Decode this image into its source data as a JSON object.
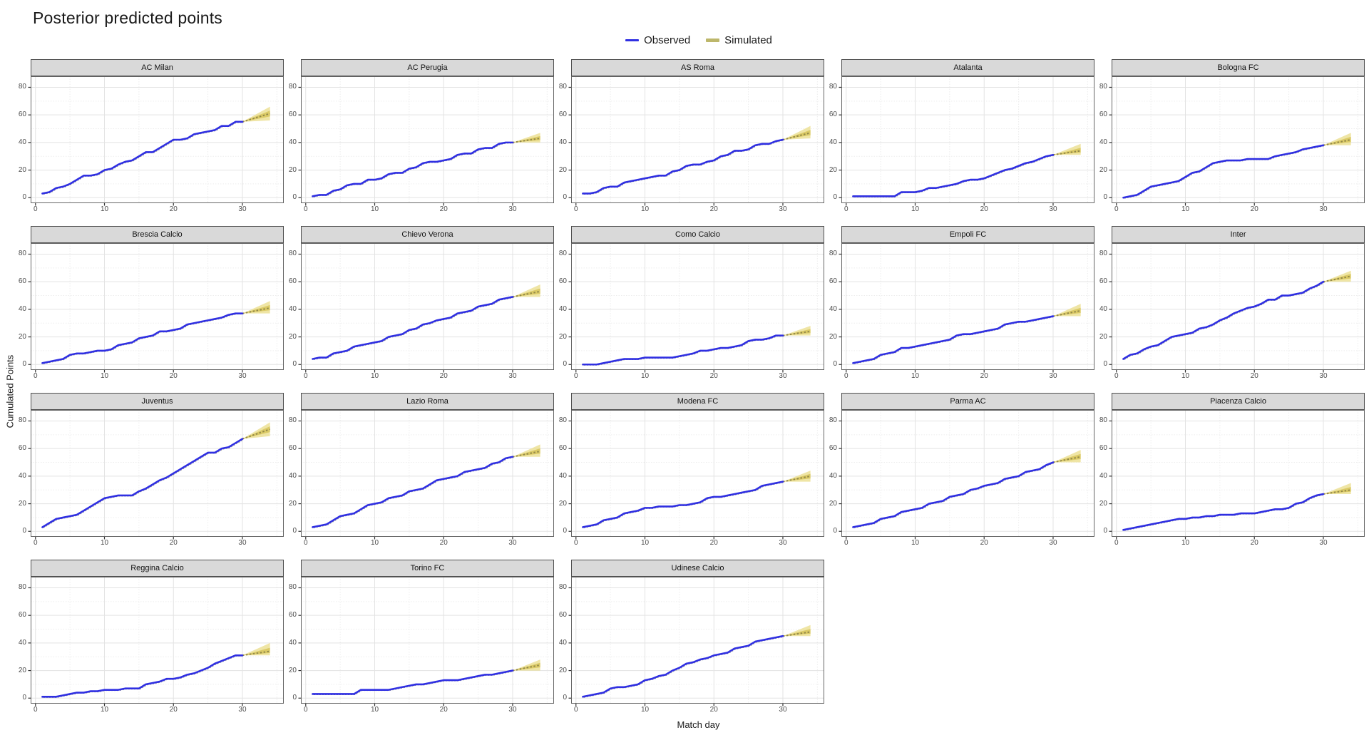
{
  "title": "Posterior predicted points",
  "legend": {
    "items": [
      {
        "label": "Observed",
        "type": "line"
      },
      {
        "label": "Simulated",
        "type": "band"
      }
    ]
  },
  "colors": {
    "observed": "#2F2FE2",
    "observed_shadow": "#9A9A9A",
    "simulated_key": "#BDB76B",
    "band_outer": "#EBDF8E",
    "band_inner": "#D8C75F",
    "median_line": "#93894A",
    "strip_bg": "#D9D9D9",
    "panel_border": "#666666",
    "grid_major": "#E3E3E3",
    "grid_minor": "#EDEDED",
    "tick_mark": "#333333"
  },
  "chart_data": {
    "type": "line",
    "title": "Posterior predicted points",
    "xlabel": "Match day",
    "ylabel": "Cumulated Points",
    "legend_entries": [
      "Observed",
      "Simulated"
    ],
    "legend_position": "top",
    "grid": true,
    "x_ticks": [
      0,
      10,
      20,
      30
    ],
    "x_minor": [
      5,
      15,
      25,
      35
    ],
    "y_ticks": [
      0,
      20,
      40,
      60,
      80
    ],
    "y_minor": [
      10,
      30,
      50,
      70
    ],
    "xlim": [
      -0.7,
      36
    ],
    "ylim": [
      -4,
      88
    ],
    "days": [
      1,
      2,
      3,
      4,
      5,
      6,
      7,
      8,
      9,
      10,
      11,
      12,
      13,
      14,
      15,
      16,
      17,
      18,
      19,
      20,
      21,
      22,
      23,
      24,
      25,
      26,
      27,
      28,
      29,
      30
    ],
    "simulated_days": [
      30,
      31,
      32,
      33,
      34
    ],
    "facets": [
      {
        "team": "AC Milan",
        "observed": [
          3,
          4,
          7,
          8,
          10,
          13,
          16,
          16,
          17,
          20,
          21,
          24,
          26,
          27,
          30,
          33,
          33,
          36,
          39,
          42,
          42,
          43,
          46,
          47,
          48,
          49,
          52,
          52,
          55,
          55
        ],
        "simulated": {
          "start": 55,
          "lower_end": 56,
          "median_end": 61,
          "upper_end": 66
        }
      },
      {
        "team": "AC Perugia",
        "observed": [
          1,
          2,
          2,
          5,
          6,
          9,
          10,
          10,
          13,
          13,
          14,
          17,
          18,
          18,
          21,
          22,
          25,
          26,
          26,
          27,
          28,
          31,
          32,
          32,
          35,
          36,
          36,
          39,
          40,
          40
        ],
        "simulated": {
          "start": 40,
          "lower_end": 40,
          "median_end": 43,
          "upper_end": 47
        }
      },
      {
        "team": "AS Roma",
        "observed": [
          3,
          3,
          4,
          7,
          8,
          8,
          11,
          12,
          13,
          14,
          15,
          16,
          16,
          19,
          20,
          23,
          24,
          24,
          26,
          27,
          30,
          31,
          34,
          34,
          35,
          38,
          39,
          39,
          41,
          42
        ],
        "simulated": {
          "start": 42,
          "lower_end": 43,
          "median_end": 47,
          "upper_end": 52
        }
      },
      {
        "team": "Atalanta",
        "observed": [
          1,
          1,
          1,
          1,
          1,
          1,
          1,
          4,
          4,
          4,
          5,
          7,
          7,
          8,
          9,
          10,
          12,
          13,
          13,
          14,
          16,
          18,
          20,
          21,
          23,
          25,
          26,
          28,
          30,
          31
        ],
        "simulated": {
          "start": 31,
          "lower_end": 31,
          "median_end": 34,
          "upper_end": 39
        }
      },
      {
        "team": "Bologna FC",
        "observed": [
          0,
          1,
          2,
          5,
          8,
          9,
          10,
          11,
          12,
          15,
          18,
          19,
          22,
          25,
          26,
          27,
          27,
          27,
          28,
          28,
          28,
          28,
          30,
          31,
          32,
          33,
          35,
          36,
          37,
          38
        ],
        "simulated": {
          "start": 38,
          "lower_end": 38,
          "median_end": 42,
          "upper_end": 47
        }
      },
      {
        "team": "Brescia Calcio",
        "observed": [
          1,
          2,
          3,
          4,
          7,
          8,
          8,
          9,
          10,
          10,
          11,
          14,
          15,
          16,
          19,
          20,
          21,
          24,
          24,
          25,
          26,
          29,
          30,
          31,
          32,
          33,
          34,
          36,
          37,
          37
        ],
        "simulated": {
          "start": 37,
          "lower_end": 37,
          "median_end": 41,
          "upper_end": 46
        }
      },
      {
        "team": "Chievo Verona",
        "observed": [
          4,
          5,
          5,
          8,
          9,
          10,
          13,
          14,
          15,
          16,
          17,
          20,
          21,
          22,
          25,
          26,
          29,
          30,
          32,
          33,
          34,
          37,
          38,
          39,
          42,
          43,
          44,
          47,
          48,
          49
        ],
        "simulated": {
          "start": 49,
          "lower_end": 49,
          "median_end": 53,
          "upper_end": 58
        }
      },
      {
        "team": "Como Calcio",
        "observed": [
          0,
          0,
          0,
          1,
          2,
          3,
          4,
          4,
          4,
          5,
          5,
          5,
          5,
          5,
          6,
          7,
          8,
          10,
          10,
          11,
          12,
          12,
          13,
          14,
          17,
          18,
          18,
          19,
          21,
          21
        ],
        "simulated": {
          "start": 21,
          "lower_end": 21,
          "median_end": 24,
          "upper_end": 28
        }
      },
      {
        "team": "Empoli FC",
        "observed": [
          1,
          2,
          3,
          4,
          7,
          8,
          9,
          12,
          12,
          13,
          14,
          15,
          16,
          17,
          18,
          21,
          22,
          22,
          23,
          24,
          25,
          26,
          29,
          30,
          31,
          31,
          32,
          33,
          34,
          35
        ],
        "simulated": {
          "start": 35,
          "lower_end": 35,
          "median_end": 39,
          "upper_end": 44
        }
      },
      {
        "team": "Inter",
        "observed": [
          4,
          7,
          8,
          11,
          13,
          14,
          17,
          20,
          21,
          22,
          23,
          26,
          27,
          29,
          32,
          34,
          37,
          39,
          41,
          42,
          44,
          47,
          47,
          50,
          50,
          51,
          52,
          55,
          57,
          60
        ],
        "simulated": {
          "start": 60,
          "lower_end": 60,
          "median_end": 64,
          "upper_end": 68
        }
      },
      {
        "team": "Juventus",
        "observed": [
          3,
          6,
          9,
          10,
          11,
          12,
          15,
          18,
          21,
          24,
          25,
          26,
          26,
          26,
          29,
          31,
          34,
          37,
          39,
          42,
          45,
          48,
          51,
          54,
          57,
          57,
          60,
          61,
          64,
          67
        ],
        "simulated": {
          "start": 67,
          "lower_end": 69,
          "median_end": 74,
          "upper_end": 79
        }
      },
      {
        "team": "Lazio Roma",
        "observed": [
          3,
          4,
          5,
          8,
          11,
          12,
          13,
          16,
          19,
          20,
          21,
          24,
          25,
          26,
          29,
          30,
          31,
          34,
          37,
          38,
          39,
          40,
          43,
          44,
          45,
          46,
          49,
          50,
          53,
          54
        ],
        "simulated": {
          "start": 54,
          "lower_end": 54,
          "median_end": 58,
          "upper_end": 63
        }
      },
      {
        "team": "Modena FC",
        "observed": [
          3,
          4,
          5,
          8,
          9,
          10,
          13,
          14,
          15,
          17,
          17,
          18,
          18,
          18,
          19,
          19,
          20,
          21,
          24,
          25,
          25,
          26,
          27,
          28,
          29,
          30,
          33,
          34,
          35,
          36
        ],
        "simulated": {
          "start": 36,
          "lower_end": 36,
          "median_end": 40,
          "upper_end": 44
        }
      },
      {
        "team": "Parma AC",
        "observed": [
          3,
          4,
          5,
          6,
          9,
          10,
          11,
          14,
          15,
          16,
          17,
          20,
          21,
          22,
          25,
          26,
          27,
          30,
          31,
          33,
          34,
          35,
          38,
          39,
          40,
          43,
          44,
          45,
          48,
          50
        ],
        "simulated": {
          "start": 50,
          "lower_end": 50,
          "median_end": 54,
          "upper_end": 59
        }
      },
      {
        "team": "Piacenza Calcio",
        "observed": [
          1,
          2,
          3,
          4,
          5,
          6,
          7,
          8,
          9,
          9,
          10,
          10,
          11,
          11,
          12,
          12,
          12,
          13,
          13,
          13,
          14,
          15,
          16,
          16,
          17,
          20,
          21,
          24,
          26,
          27
        ],
        "simulated": {
          "start": 27,
          "lower_end": 27,
          "median_end": 30,
          "upper_end": 35
        }
      },
      {
        "team": "Reggina Calcio",
        "observed": [
          1,
          1,
          1,
          2,
          3,
          4,
          4,
          5,
          5,
          6,
          6,
          6,
          7,
          7,
          7,
          10,
          11,
          12,
          14,
          14,
          15,
          17,
          18,
          20,
          22,
          25,
          27,
          29,
          31,
          31
        ],
        "simulated": {
          "start": 31,
          "lower_end": 31,
          "median_end": 34,
          "upper_end": 40
        }
      },
      {
        "team": "Torino FC",
        "observed": [
          3,
          3,
          3,
          3,
          3,
          3,
          3,
          6,
          6,
          6,
          6,
          6,
          7,
          8,
          9,
          10,
          10,
          11,
          12,
          13,
          13,
          13,
          14,
          15,
          16,
          17,
          17,
          18,
          19,
          20
        ],
        "simulated": {
          "start": 20,
          "lower_end": 20,
          "median_end": 24,
          "upper_end": 28
        }
      },
      {
        "team": "Udinese Calcio",
        "observed": [
          1,
          2,
          3,
          4,
          7,
          8,
          8,
          9,
          10,
          13,
          14,
          16,
          17,
          20,
          22,
          25,
          26,
          28,
          29,
          31,
          32,
          33,
          36,
          37,
          38,
          41,
          42,
          43,
          44,
          45
        ],
        "simulated": {
          "start": 45,
          "lower_end": 45,
          "median_end": 48,
          "upper_end": 53
        }
      }
    ]
  }
}
